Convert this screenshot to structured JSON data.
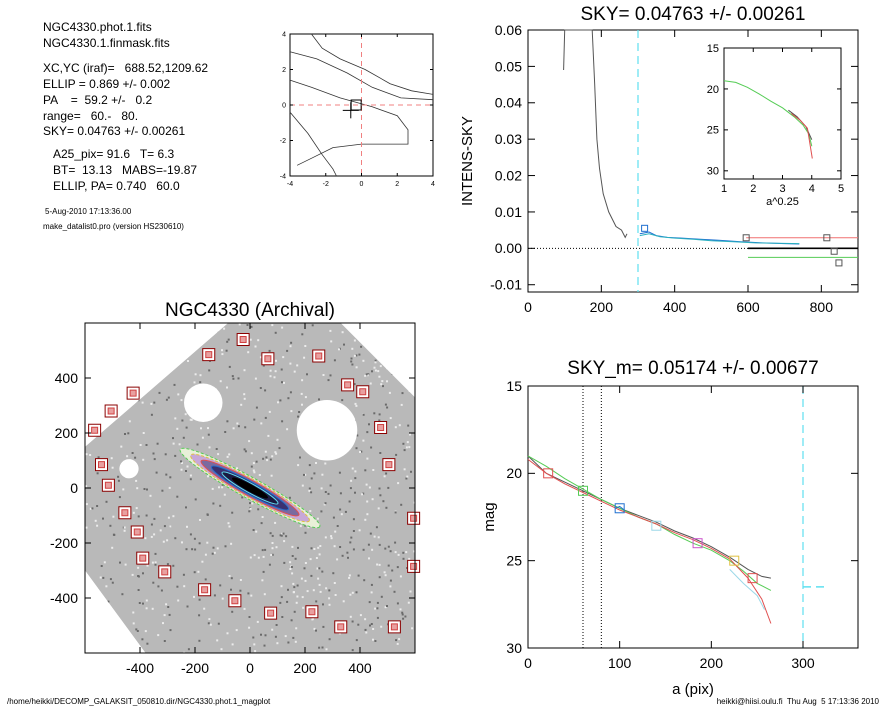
{
  "info": {
    "file1": "NGC4330.phot.1.fits",
    "file2": "NGC4330.1.finmask.fits",
    "xcyc": "XC,YC (iraf)=   688.52,1209.62",
    "ellip": "ELLIP = 0.869 +/- 0.002",
    "pa": "PA    =  59.2 +/-   0.2",
    "range": "range=   60.-   80.",
    "sky": "SKY= 0.04763 +/- 0.00261",
    "a25": "A25_pix= 91.6   T= 6.3",
    "bt": "BT=  13.13   MABS=-19.87",
    "ellip_pa": "ELLIP, PA= 0.740   60.0",
    "date": "5-Aug-2010 17:13:36.00",
    "version": "make_datalist0.pro (version HS230610)"
  },
  "footer": {
    "left": "/home/heikki/DECOMP_GALAKSIT_050810.dir/NGC4330.phot.1_magplot",
    "right": "heikki@hiisi.oulu.fi  Thu Aug  5 17:13:36 2010"
  },
  "chart_data": [
    {
      "id": "contour",
      "type": "line",
      "title": "",
      "xlim": [
        -4,
        4
      ],
      "ylim": [
        -4,
        4
      ],
      "xticks": [
        "-4",
        "-2",
        "0",
        "2",
        "4"
      ],
      "yticks": [
        "-4",
        "-2",
        "0",
        "2",
        "4"
      ],
      "contours": [
        [
          [
            -4,
            3.0
          ],
          [
            -2.5,
            2.6
          ],
          [
            -0.8,
            1.8
          ],
          [
            0.6,
            1.0
          ],
          [
            2.2,
            0.4
          ],
          [
            4,
            0.3
          ]
        ],
        [
          [
            -4,
            1.4
          ],
          [
            -2.8,
            1.0
          ],
          [
            -1.2,
            0.4
          ],
          [
            0.6,
            -0.1
          ],
          [
            2.0,
            -0.6
          ],
          [
            2.6,
            -1.4
          ],
          [
            2.6,
            -2.2
          ],
          [
            1.2,
            -2.2
          ],
          [
            0,
            -2.2
          ],
          [
            -1.6,
            -2.4
          ],
          [
            -2.8,
            -3.0
          ],
          [
            -3.6,
            -3.4
          ]
        ],
        [
          [
            -4,
            -0.4
          ],
          [
            -3.0,
            -1.6
          ],
          [
            -2.2,
            -2.8
          ],
          [
            -1.6,
            -3.6
          ],
          [
            -1.4,
            -4
          ]
        ],
        [
          [
            -2.8,
            4
          ],
          [
            -2.2,
            3.2
          ],
          [
            -1.2,
            2.6
          ],
          [
            0.2,
            2.0
          ],
          [
            1.6,
            1.2
          ],
          [
            2.8,
            0.8
          ],
          [
            4,
            0.6
          ]
        ]
      ],
      "dashed_lines": {
        "x": 0.0,
        "y": 0.0
      },
      "center_marker": [
        -0.6,
        -0.3
      ],
      "box_marker": [
        -0.3,
        0.0
      ]
    },
    {
      "id": "sky",
      "type": "line",
      "title": "SKY= 0.04763 +/- 0.00261",
      "ylabel": "INTENS-SKY",
      "xlabel": "",
      "xlim": [
        0,
        900
      ],
      "ylim": [
        -0.012,
        0.06
      ],
      "xticks": [
        0,
        200,
        400,
        600,
        800
      ],
      "yticks": [
        -0.01,
        0.0,
        0.01,
        0.02,
        0.03,
        0.04,
        0.05,
        0.06
      ],
      "ytick_labels": [
        "-0.01",
        "0.00",
        "0.01",
        "0.02",
        "0.03",
        "0.04",
        "0.05",
        "0.06"
      ],
      "vline_cyan": 300,
      "series": [
        {
          "color": "#555555",
          "points": [
            [
              97,
              0.049
            ],
            [
              100,
              0.06
            ],
            [
              175,
              0.06
            ],
            [
              182,
              0.045
            ],
            [
              188,
              0.03
            ],
            [
              195,
              0.022
            ],
            [
              205,
              0.015
            ],
            [
              220,
              0.01
            ],
            [
              240,
              0.006
            ],
            [
              255,
              0.005
            ],
            [
              265,
              0.003
            ],
            [
              270,
              0.004
            ]
          ]
        },
        {
          "color": "#1f6fd0",
          "points": [
            [
              305,
              0.004
            ],
            [
              330,
              0.0045
            ],
            [
              350,
              0.0035
            ],
            [
              380,
              0.003
            ],
            [
              420,
              0.0028
            ],
            [
              470,
              0.0025
            ],
            [
              520,
              0.0022
            ],
            [
              580,
              0.0018
            ],
            [
              640,
              0.0015
            ],
            [
              700,
              0.0013
            ],
            [
              740,
              0.0012
            ]
          ]
        },
        {
          "color": "#2ab0c0",
          "points": [
            [
              305,
              0.0035
            ],
            [
              330,
              0.004
            ],
            [
              360,
              0.0032
            ],
            [
              400,
              0.0028
            ],
            [
              450,
              0.0025
            ],
            [
              500,
              0.0021
            ],
            [
              560,
              0.0018
            ],
            [
              620,
              0.0015
            ],
            [
              680,
              0.0014
            ],
            [
              740,
              0.0013
            ]
          ]
        },
        {
          "color": "#f07070",
          "points": [
            [
              595,
              0.0029
            ],
            [
              900,
              0.0029
            ]
          ]
        },
        {
          "color": "#000000",
          "points": [
            [
              600,
              0.0
            ],
            [
              900,
              0.0
            ]
          ]
        },
        {
          "color": "#55cc55",
          "points": [
            [
              600,
              -0.0025
            ],
            [
              900,
              -0.0025
            ]
          ]
        }
      ],
      "markers": [
        {
          "x": 318,
          "y": 0.0055,
          "color": "#1f6fd0"
        },
        {
          "x": 595,
          "y": 0.0029,
          "color": "#555555"
        },
        {
          "x": 815,
          "y": 0.0029,
          "color": "#555555"
        },
        {
          "x": 835,
          "y": -0.0008,
          "color": "#555555"
        },
        {
          "x": 848,
          "y": -0.004,
          "color": "#555555"
        }
      ],
      "inset": {
        "xlabel": "a^0.25",
        "xlim": [
          1,
          5
        ],
        "ylim": [
          15,
          31
        ],
        "xticks": [
          1,
          2,
          3,
          4,
          5
        ],
        "yticks": [
          15,
          20,
          25,
          30
        ],
        "series": [
          {
            "color": "#55cc55",
            "points": [
              [
                1,
                19.0
              ],
              [
                1.4,
                19.2
              ],
              [
                1.8,
                19.8
              ],
              [
                2.2,
                20.6
              ],
              [
                2.6,
                21.5
              ],
              [
                3.0,
                22.3
              ],
              [
                3.4,
                23.4
              ],
              [
                3.7,
                24.4
              ],
              [
                3.9,
                25.5
              ],
              [
                4.0,
                27.0
              ]
            ]
          },
          {
            "color": "#555555",
            "points": [
              [
                3.2,
                22.6
              ],
              [
                3.5,
                23.4
              ],
              [
                3.8,
                24.6
              ],
              [
                4.0,
                26.2
              ]
            ]
          },
          {
            "color": "#e05050",
            "points": [
              [
                3.3,
                23.0
              ],
              [
                3.6,
                23.8
              ],
              [
                3.85,
                24.8
              ],
              [
                4.02,
                28.5
              ]
            ]
          }
        ]
      }
    },
    {
      "id": "image",
      "type": "scatter",
      "title": "NGC4330 (Archival)",
      "xlim": [
        -600,
        600
      ],
      "ylim": [
        -600,
        600
      ],
      "xticks": [
        -400,
        -200,
        0,
        200,
        400
      ],
      "yticks": [
        -400,
        -200,
        0,
        200,
        400
      ],
      "markers": [
        [
          -565,
          210
        ],
        [
          -540,
          85
        ],
        [
          -515,
          10
        ],
        [
          -505,
          280
        ],
        [
          -455,
          -90
        ],
        [
          -425,
          345
        ],
        [
          -410,
          -160
        ],
        [
          -390,
          -255
        ],
        [
          -310,
          -305
        ],
        [
          -165,
          -370
        ],
        [
          -150,
          485
        ],
        [
          -55,
          -410
        ],
        [
          -25,
          540
        ],
        [
          65,
          470
        ],
        [
          75,
          -455
        ],
        [
          225,
          -450
        ],
        [
          250,
          480
        ],
        [
          330,
          -505
        ],
        [
          355,
          375
        ],
        [
          410,
          350
        ],
        [
          525,
          -505
        ],
        [
          475,
          220
        ],
        [
          505,
          85
        ],
        [
          595,
          -110
        ],
        [
          595,
          -285
        ]
      ],
      "holes": [
        {
          "cx": -170,
          "cy": 310,
          "r": 70
        },
        {
          "cx": 280,
          "cy": 210,
          "r": 110
        },
        {
          "cx": -440,
          "cy": 70,
          "r": 35
        }
      ],
      "galaxy": {
        "cx": 0,
        "cy": 0,
        "rx": 290,
        "ry": 38,
        "angle_deg": -29
      }
    },
    {
      "id": "mag",
      "type": "line",
      "title": "SKY_m=  0.05174 +/- 0.00677",
      "ylabel": "mag",
      "xlabel": "a (pix)",
      "xlim": [
        0,
        360
      ],
      "ylim": [
        15,
        30
      ],
      "xticks": [
        0,
        100,
        200,
        300
      ],
      "yticks": [
        15,
        20,
        25,
        30
      ],
      "vlines_dotted": [
        60,
        80
      ],
      "vline_cyan": 300,
      "cyan_segment": {
        "x": [
          300,
          325
        ],
        "y": 26.5
      },
      "series": [
        {
          "color": "#555555",
          "points": [
            [
              0,
              19.0
            ],
            [
              20,
              20.0
            ],
            [
              40,
              20.5
            ],
            [
              60,
              21.0
            ],
            [
              80,
              21.5
            ],
            [
              100,
              22.0
            ],
            [
              120,
              22.4
            ],
            [
              140,
              22.8
            ],
            [
              160,
              23.3
            ],
            [
              180,
              23.7
            ],
            [
              200,
              24.2
            ],
            [
              220,
              24.8
            ],
            [
              240,
              25.5
            ],
            [
              255,
              25.9
            ],
            [
              265,
              26.0
            ]
          ]
        },
        {
          "color": "#55cc55",
          "points": [
            [
              0,
              19.0
            ],
            [
              20,
              19.6
            ],
            [
              40,
              20.3
            ],
            [
              60,
              20.9
            ],
            [
              80,
              21.5
            ],
            [
              100,
              22.0
            ],
            [
              120,
              22.5
            ],
            [
              140,
              22.9
            ],
            [
              160,
              23.5
            ],
            [
              180,
              24.0
            ],
            [
              200,
              24.4
            ],
            [
              220,
              25.0
            ],
            [
              235,
              25.6
            ],
            [
              250,
              26.3
            ],
            [
              265,
              26.7
            ]
          ]
        },
        {
          "color": "#e05050",
          "points": [
            [
              0,
              19.2
            ],
            [
              20,
              20.0
            ],
            [
              40,
              20.6
            ],
            [
              60,
              21.1
            ],
            [
              80,
              21.6
            ],
            [
              100,
              22.1
            ],
            [
              120,
              22.5
            ],
            [
              140,
              22.9
            ],
            [
              160,
              23.4
            ],
            [
              180,
              23.8
            ],
            [
              200,
              24.3
            ],
            [
              220,
              24.9
            ],
            [
              240,
              26.0
            ],
            [
              255,
              27.2
            ],
            [
              265,
              28.6
            ]
          ]
        },
        {
          "color": "#1f6fd0",
          "points": [
            [
              95,
              22.0
            ],
            [
              100,
              21.9
            ],
            [
              105,
              22.1
            ]
          ]
        },
        {
          "color": "#9bd8e8",
          "points": [
            [
              220,
              25.5
            ],
            [
              235,
              26.3
            ],
            [
              250,
              27.0
            ],
            [
              258,
              27.8
            ]
          ]
        }
      ],
      "markers": [
        {
          "x": 22,
          "y": 20.0,
          "color": "#e05050"
        },
        {
          "x": 60,
          "y": 21.0,
          "color": "#55cc55"
        },
        {
          "x": 100,
          "y": 22.0,
          "color": "#1f6fd0"
        },
        {
          "x": 140,
          "y": 23.0,
          "color": "#9bd8e8"
        },
        {
          "x": 185,
          "y": 24.0,
          "color": "#cc55cc"
        },
        {
          "x": 225,
          "y": 25.0,
          "color": "#e0c040"
        },
        {
          "x": 245,
          "y": 26.0,
          "color": "#e05050"
        }
      ]
    }
  ]
}
